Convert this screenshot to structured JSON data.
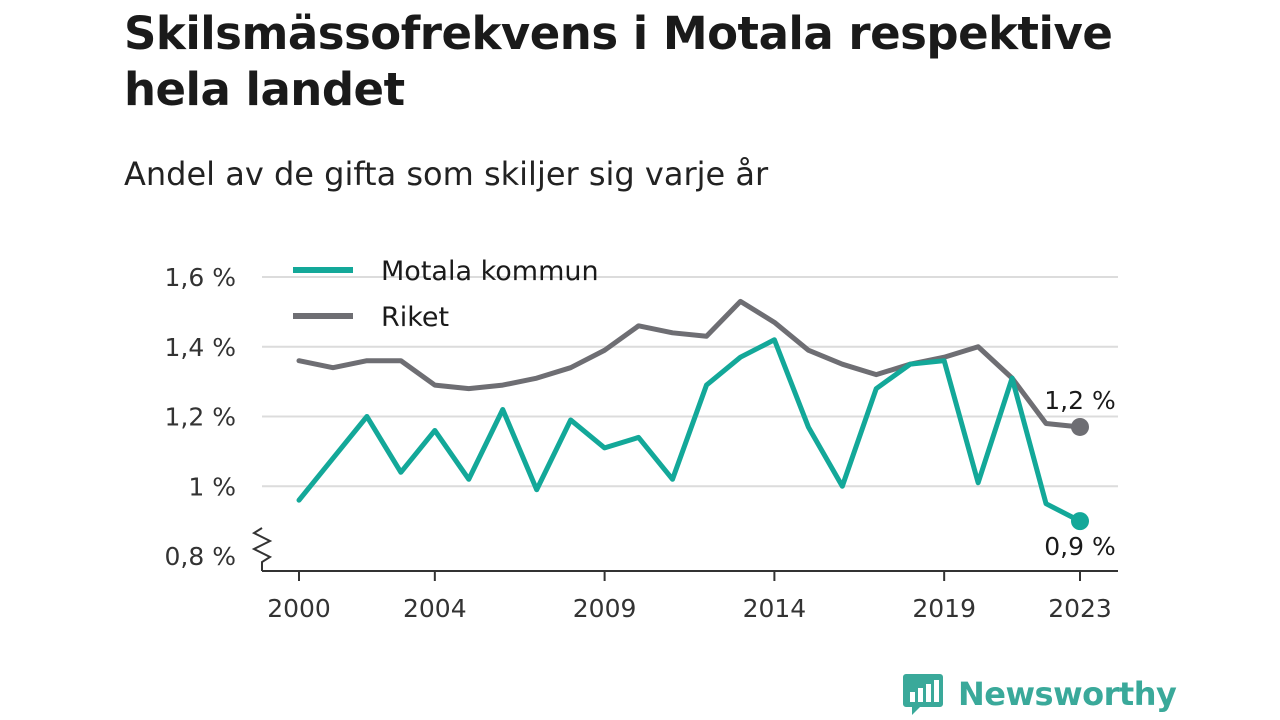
{
  "title": "Skilsmässofrekvens i Motala respektive hela landet",
  "subtitle": "Andel av de gifta som skiljer sig varje år",
  "brand": {
    "name": "Newsworthy",
    "icon": "bar-chart-speech-bubble-icon"
  },
  "chart_data": {
    "type": "line",
    "x": [
      2000,
      2001,
      2002,
      2003,
      2004,
      2005,
      2006,
      2007,
      2008,
      2009,
      2010,
      2011,
      2012,
      2013,
      2014,
      2015,
      2016,
      2017,
      2018,
      2019,
      2020,
      2021,
      2022,
      2023
    ],
    "x_ticks": [
      2000,
      2004,
      2009,
      2014,
      2019,
      2023
    ],
    "x_tick_labels": [
      "2000",
      "2004",
      "2009",
      "2014",
      "2019",
      "2023"
    ],
    "y_ticks": [
      0.8,
      1.0,
      1.2,
      1.4,
      1.6
    ],
    "y_tick_labels": [
      "0,8 %",
      "1 %",
      "1,2 %",
      "1,4 %",
      "1,6 %"
    ],
    "ylim": [
      0.8,
      1.6
    ],
    "y_axis_break": true,
    "grid": true,
    "legend_position": "top-left",
    "series": [
      {
        "name": "Motala kommun",
        "color": "#13a899",
        "values": [
          0.96,
          1.08,
          1.2,
          1.04,
          1.16,
          1.02,
          1.22,
          0.99,
          1.19,
          1.11,
          1.14,
          1.02,
          1.29,
          1.37,
          1.42,
          1.17,
          1.0,
          1.28,
          1.35,
          1.36,
          1.01,
          1.31,
          0.95,
          0.9
        ],
        "end_label": "0,9 %"
      },
      {
        "name": "Riket",
        "color": "#6e6e73",
        "values": [
          1.36,
          1.34,
          1.36,
          1.36,
          1.29,
          1.28,
          1.29,
          1.31,
          1.34,
          1.39,
          1.46,
          1.44,
          1.43,
          1.53,
          1.47,
          1.39,
          1.35,
          1.32,
          1.35,
          1.37,
          1.4,
          1.31,
          1.18,
          1.17
        ],
        "end_label": "1,2 %"
      }
    ]
  }
}
